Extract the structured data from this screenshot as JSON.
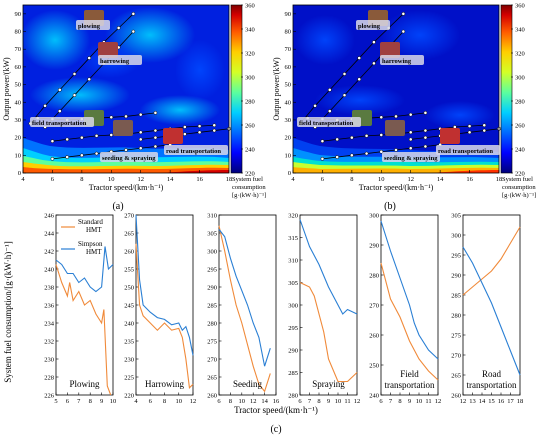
{
  "panels": {
    "a": {
      "label": "(a)"
    },
    "b": {
      "label": "(b)"
    },
    "c": {
      "label": "(c)"
    }
  },
  "contour": {
    "xlabel": "Tractor speed/(km·h⁻¹)",
    "ylabel": "Output power/(kW)",
    "xlim": [
      4,
      18
    ],
    "ylim": [
      0,
      95
    ],
    "xticks": [
      4,
      6,
      8,
      10,
      12,
      14,
      16,
      18
    ],
    "yticks": [
      0,
      10,
      20,
      30,
      40,
      50,
      60,
      70,
      80,
      90
    ],
    "colorbar": {
      "label_lines": [
        "System fuel",
        "consumption",
        "[g·(kW·h)⁻¹]"
      ],
      "ticks": [
        220,
        240,
        260,
        280,
        300,
        320,
        340,
        360
      ],
      "range": [
        220,
        360
      ],
      "colors": [
        "#00007a",
        "#0000ff",
        "#0072ff",
        "#00cfff",
        "#5dff9d",
        "#d4ff26",
        "#ffcf00",
        "#ff5a00",
        "#d40000",
        "#7f0000"
      ]
    },
    "operation_labels": {
      "plowing": "plowing",
      "harrowing": "harrowing",
      "field_transportation": "field transportation",
      "seeding_spraying": "seeding & spraying",
      "road_transportation": "road transportation"
    },
    "icon_names": {
      "plowing": "plowing-tractor-photo",
      "harrowing": "harrowing-tractor-photo",
      "field_transportation": "field-transport-tractor-photo",
      "seeding": "seeding-tractor-photo",
      "road_transportation": "road-transport-tractor-photo"
    }
  },
  "chart_data": [
    {
      "type": "heatmap",
      "panel": "(a)",
      "description_of_lines": "operating lines with markers",
      "xlabel": "Tractor speed/(km·h⁻¹)",
      "ylabel": "Output power/(kW)",
      "xlim": [
        4,
        18
      ],
      "ylim": [
        0,
        95
      ],
      "series": [
        {
          "x": [
            4.5,
            5.5,
            6.5,
            7.5,
            8.5,
            9.5,
            10.5,
            11.5
          ],
          "y": [
            28,
            38,
            47,
            56,
            65,
            74,
            82,
            90
          ]
        },
        {
          "x": [
            5.5,
            6.5,
            7.5,
            8.5,
            9.5,
            10.5,
            11.5
          ],
          "y": [
            26,
            35,
            44,
            53,
            62,
            71,
            80
          ]
        },
        {
          "x": [
            5,
            6,
            7,
            8,
            9,
            10,
            11,
            12,
            13
          ],
          "y": [
            31,
            30.5,
            30,
            30.5,
            31,
            31.5,
            32,
            33,
            34
          ]
        },
        {
          "x": [
            6,
            7,
            8,
            9,
            10,
            11,
            12,
            13,
            14,
            15,
            16,
            17
          ],
          "y": [
            18,
            19,
            20,
            21,
            21.5,
            22,
            23,
            24,
            25,
            26,
            26.5,
            27
          ]
        },
        {
          "x": [
            6,
            7,
            8,
            9,
            10,
            11,
            12,
            13,
            14
          ],
          "y": [
            8,
            9,
            10,
            11,
            12,
            13,
            14,
            15,
            16
          ]
        },
        {
          "x": [
            12,
            13,
            14,
            15,
            16,
            17,
            18
          ],
          "y": [
            19,
            20,
            21,
            22,
            23,
            24,
            25
          ]
        }
      ]
    },
    {
      "type": "heatmap",
      "panel": "(b)",
      "xlabel": "Tractor speed/(km·h⁻¹)",
      "ylabel": "Output power/(kW)",
      "xlim": [
        4,
        18
      ],
      "ylim": [
        0,
        95
      ],
      "series": [
        {
          "x": [
            4.5,
            5.5,
            6.5,
            7.5,
            8.5,
            9.5,
            10.5,
            11.5
          ],
          "y": [
            28,
            38,
            47,
            56,
            65,
            74,
            82,
            90
          ]
        },
        {
          "x": [
            5.5,
            6.5,
            7.5,
            8.5,
            9.5,
            10.5,
            11.5
          ],
          "y": [
            26,
            35,
            44,
            53,
            62,
            71,
            80
          ]
        },
        {
          "x": [
            5,
            6,
            7,
            8,
            9,
            10,
            11,
            12,
            13
          ],
          "y": [
            31,
            30.5,
            30,
            30.5,
            31,
            31.5,
            32,
            33,
            34
          ]
        },
        {
          "x": [
            6,
            7,
            8,
            9,
            10,
            11,
            12,
            13,
            14,
            15,
            16,
            17
          ],
          "y": [
            18,
            19,
            20,
            21,
            21.5,
            22,
            23,
            24,
            25,
            26,
            26.5,
            27
          ]
        },
        {
          "x": [
            6,
            7,
            8,
            9,
            10,
            11,
            12,
            13,
            14
          ],
          "y": [
            8,
            9,
            10,
            11,
            12,
            13,
            14,
            15,
            16
          ]
        },
        {
          "x": [
            12,
            13,
            14,
            15,
            16,
            17,
            18
          ],
          "y": [
            19,
            20,
            21,
            22,
            23,
            24,
            25
          ]
        }
      ]
    },
    {
      "type": "line",
      "panel": "(c)",
      "xlabel": "Tractor speed/(km·h⁻¹)",
      "ylabel": "System fuel consumption/[g·(kW·h)⁻¹]",
      "legend": [
        "Standard HMT",
        "Simpson HMT"
      ],
      "legend_lines": [
        [
          "Standard",
          "HMT"
        ],
        [
          "Simpson",
          "HMT"
        ]
      ],
      "series_colors": [
        "#f08a3a",
        "#2a7fd4"
      ],
      "subplots": [
        {
          "name": "Plowing",
          "xlim": [
            5,
            10
          ],
          "xticks": [
            5,
            6,
            7,
            8,
            9,
            10
          ],
          "ylim": [
            226,
            246
          ],
          "yticks": [
            226,
            228,
            230,
            232,
            234,
            236,
            238,
            240,
            242,
            244,
            246
          ],
          "series": [
            {
              "name": "Standard HMT",
              "x": [
                5,
                5.5,
                6,
                6.2,
                6.5,
                7,
                7.5,
                8,
                8.5,
                9,
                9.2,
                9.5,
                9.8
              ],
              "y": [
                240.5,
                238.5,
                237,
                238.5,
                236.5,
                237.5,
                236,
                236.5,
                235,
                234,
                235.5,
                227,
                226
              ]
            },
            {
              "name": "Simpson HMT",
              "x": [
                5,
                5.5,
                6,
                6.5,
                7,
                7.5,
                8,
                8.5,
                9,
                9.3,
                9.6,
                10
              ],
              "y": [
                241,
                240.5,
                239.5,
                239.5,
                238.5,
                239,
                238,
                237.5,
                238,
                242.5,
                240,
                240.5
              ]
            }
          ]
        },
        {
          "name": "Harrowing",
          "xlim": [
            4,
            12
          ],
          "xticks": [
            4,
            6,
            8,
            10,
            12
          ],
          "ylim": [
            220,
            270
          ],
          "yticks": [
            220,
            225,
            230,
            235,
            240,
            245,
            250,
            255,
            260,
            265,
            270
          ],
          "series": [
            {
              "name": "Standard HMT",
              "x": [
                4,
                4.5,
                5,
                6,
                7,
                8,
                9,
                10,
                10.5,
                11,
                11.5,
                12
              ],
              "y": [
                262,
                245,
                242,
                240,
                238,
                240,
                238,
                238.5,
                236,
                230,
                222,
                223
              ]
            },
            {
              "name": "Simpson HMT",
              "x": [
                4,
                4.5,
                5,
                6,
                7,
                8,
                9,
                10,
                10.5,
                11,
                11.5,
                12
              ],
              "y": [
                270,
                252,
                245,
                243,
                241.5,
                241,
                239.5,
                240,
                238,
                239,
                236,
                231
              ]
            }
          ]
        },
        {
          "name": "Seeding",
          "xlim": [
            6,
            16
          ],
          "xticks": [
            6,
            8,
            10,
            12,
            14,
            16
          ],
          "ylim": [
            260,
            310
          ],
          "yticks": [
            260,
            265,
            270,
            275,
            280,
            285,
            290,
            295,
            300,
            305,
            310
          ],
          "series": [
            {
              "name": "Standard HMT",
              "x": [
                6,
                7,
                8,
                9,
                10,
                11,
                12,
                13,
                14,
                15
              ],
              "y": [
                307,
                300,
                292,
                285,
                280,
                274,
                268,
                263,
                261,
                266
              ]
            },
            {
              "name": "Simpson HMT",
              "x": [
                6,
                7,
                8,
                9,
                10,
                11,
                12,
                13,
                14,
                15
              ],
              "y": [
                306,
                304,
                298,
                293,
                289,
                285,
                280,
                276,
                268,
                273
              ]
            }
          ]
        },
        {
          "name": "Spraying",
          "xlim": [
            6,
            12
          ],
          "xticks": [
            6,
            7,
            8,
            9,
            10,
            11,
            12
          ],
          "ylim": [
            280,
            320
          ],
          "yticks": [
            280,
            285,
            290,
            295,
            300,
            305,
            310,
            315,
            320
          ],
          "series": [
            {
              "name": "Standard HMT",
              "x": [
                6,
                7,
                7.5,
                8,
                8.5,
                9,
                10,
                11,
                12
              ],
              "y": [
                305,
                304,
                302,
                298,
                294,
                288,
                283,
                283,
                285
              ]
            },
            {
              "name": "Simpson HMT",
              "x": [
                6,
                7,
                8,
                9,
                10,
                10.5,
                11,
                12
              ],
              "y": [
                319,
                313,
                309,
                304,
                300,
                298,
                299,
                298
              ]
            }
          ]
        },
        {
          "name": "Field transportation",
          "xlim": [
            6,
            12
          ],
          "xticks": [
            6,
            7,
            8,
            9,
            10,
            11,
            12
          ],
          "ylim": [
            240,
            300
          ],
          "yticks": [
            240,
            250,
            260,
            270,
            280,
            290,
            300
          ],
          "series": [
            {
              "name": "Standard HMT",
              "x": [
                6,
                7,
                8,
                9,
                9.5,
                10,
                11,
                12
              ],
              "y": [
                284,
                272,
                266,
                258,
                255,
                252,
                248,
                245
              ]
            },
            {
              "name": "Simpson HMT",
              "x": [
                6,
                7,
                8,
                9,
                9.5,
                10,
                11,
                12
              ],
              "y": [
                298,
                288,
                279,
                270,
                264,
                260,
                255,
                252
              ]
            }
          ]
        },
        {
          "name": "Road transportation",
          "xlim": [
            12,
            18
          ],
          "xticks": [
            12,
            13,
            14,
            15,
            16,
            17,
            18
          ],
          "ylim": [
            260,
            305
          ],
          "yticks": [
            260,
            265,
            270,
            275,
            280,
            285,
            290,
            295,
            300,
            305
          ],
          "series": [
            {
              "name": "Standard HMT",
              "x": [
                12,
                13,
                14,
                15,
                16,
                17,
                18
              ],
              "y": [
                285,
                287,
                289,
                291,
                294,
                298,
                302
              ]
            },
            {
              "name": "Simpson HMT",
              "x": [
                12,
                13,
                14,
                15,
                16,
                17,
                18
              ],
              "y": [
                297,
                293,
                288,
                283,
                277,
                271,
                265
              ]
            }
          ]
        }
      ]
    }
  ]
}
